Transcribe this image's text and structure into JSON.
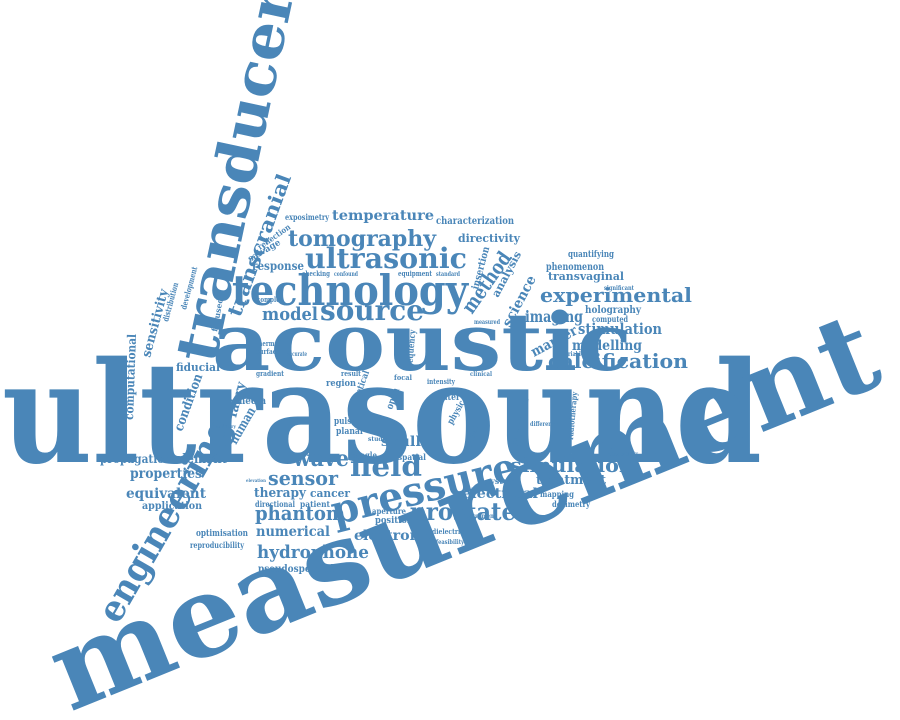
{
  "color": "#4a86b8",
  "words": [
    {
      "text": "ultrasound",
      "size": "xxl"
    },
    {
      "text": "measurement",
      "size": "xxl"
    },
    {
      "text": "acoustic",
      "size": "xl"
    },
    {
      "text": "transducer",
      "size": "xl"
    },
    {
      "text": "technology",
      "size": "l"
    },
    {
      "text": "engineering",
      "size": "l"
    },
    {
      "text": "pressure",
      "size": "l"
    },
    {
      "text": "ultrasonic",
      "size": "m"
    },
    {
      "text": "source",
      "size": "m"
    },
    {
      "text": "tomography",
      "size": "m"
    },
    {
      "text": "transcranial",
      "size": "m"
    },
    {
      "text": "field",
      "size": "m"
    },
    {
      "text": "wave",
      "size": "m"
    },
    {
      "text": "sensor",
      "size": "m"
    },
    {
      "text": "prostate",
      "size": "m"
    },
    {
      "text": "simulation",
      "size": "m"
    },
    {
      "text": "experimental",
      "size": "m"
    },
    {
      "text": "calcification",
      "size": "m"
    },
    {
      "text": "phantom",
      "size": "m"
    },
    {
      "text": "hydrophone",
      "size": "m"
    },
    {
      "text": "model",
      "size": "m"
    },
    {
      "text": "method",
      "size": "m"
    },
    {
      "text": "temperature",
      "size": "s"
    },
    {
      "text": "stimulation",
      "size": "s"
    },
    {
      "text": "imaging",
      "size": "s"
    },
    {
      "text": "science",
      "size": "s"
    },
    {
      "text": "modelling",
      "size": "s"
    },
    {
      "text": "marker",
      "size": "s"
    },
    {
      "text": "numerical",
      "size": "s"
    },
    {
      "text": "electronic",
      "size": "s"
    },
    {
      "text": "electrical",
      "size": "s"
    },
    {
      "text": "treatment",
      "size": "s"
    },
    {
      "text": "skull",
      "size": "s"
    },
    {
      "text": "therapy",
      "size": "s"
    },
    {
      "text": "properties",
      "size": "s"
    },
    {
      "text": "equivalent",
      "size": "s"
    },
    {
      "text": "application",
      "size": "xs"
    },
    {
      "text": "propagation",
      "size": "xs"
    },
    {
      "text": "element",
      "size": "s"
    },
    {
      "text": "sensitivity",
      "size": "s"
    },
    {
      "text": "computational",
      "size": "s"
    },
    {
      "text": "condition",
      "size": "s"
    },
    {
      "text": "human",
      "size": "s"
    },
    {
      "text": "fabry",
      "size": "s"
    },
    {
      "text": "fiducial",
      "size": "xs"
    },
    {
      "text": "directivity",
      "size": "xs"
    },
    {
      "text": "characterization",
      "size": "xs"
    },
    {
      "text": "transvaginal",
      "size": "xs"
    },
    {
      "text": "holography",
      "size": "xs"
    },
    {
      "text": "phenomenon",
      "size": "xs"
    },
    {
      "text": "quantifying",
      "size": "xs"
    },
    {
      "text": "response",
      "size": "xs"
    },
    {
      "text": "analysis",
      "size": "xs"
    },
    {
      "text": "insertion",
      "size": "xs"
    },
    {
      "text": "exposimetry",
      "size": "xs"
    },
    {
      "text": "reflection",
      "size": "xs"
    },
    {
      "text": "salvage",
      "size": "xs"
    },
    {
      "text": "optimisation",
      "size": "xs"
    },
    {
      "text": "reproducibility",
      "size": "xs"
    },
    {
      "text": "pseudospectral",
      "size": "xs"
    },
    {
      "text": "cancer",
      "size": "xs"
    },
    {
      "text": "mapping",
      "size": "xs"
    },
    {
      "text": "dosimetry",
      "size": "xs"
    },
    {
      "text": "position",
      "size": "xs"
    },
    {
      "text": "aperture",
      "size": "xs"
    },
    {
      "text": "system",
      "size": "xs"
    },
    {
      "text": "distortion",
      "size": "xs"
    },
    {
      "text": "spatial",
      "size": "xs"
    },
    {
      "text": "directional",
      "size": "xs"
    },
    {
      "text": "patient",
      "size": "xs"
    },
    {
      "text": "planar",
      "size": "xs"
    },
    {
      "text": "media",
      "size": "xs"
    },
    {
      "text": "region",
      "size": "xs"
    },
    {
      "text": "gradient",
      "size": "xs"
    },
    {
      "text": "intensity",
      "size": "xs"
    },
    {
      "text": "equipment",
      "size": "xs"
    },
    {
      "text": "checking",
      "size": "xs"
    },
    {
      "text": "complex",
      "size": "xs"
    },
    {
      "text": "focused",
      "size": "xs"
    },
    {
      "text": "computed",
      "size": "xs"
    },
    {
      "text": "variable",
      "size": "xs"
    },
    {
      "text": "thermal",
      "size": "xs"
    },
    {
      "text": "surface",
      "size": "xs"
    },
    {
      "text": "accurate",
      "size": "xs"
    },
    {
      "text": "distribution",
      "size": "xs"
    },
    {
      "text": "development",
      "size": "xs"
    },
    {
      "text": "radiotherapy",
      "size": "xs"
    },
    {
      "text": "difference",
      "size": "xs"
    },
    {
      "text": "water",
      "size": "xs"
    },
    {
      "text": "focal",
      "size": "xs"
    },
    {
      "text": "open",
      "size": "xs"
    },
    {
      "text": "optical",
      "size": "xs"
    },
    {
      "text": "frequency",
      "size": "xs"
    },
    {
      "text": "physic",
      "size": "xs"
    },
    {
      "text": "single",
      "size": "xs"
    },
    {
      "text": "pulse",
      "size": "xs"
    },
    {
      "text": "result",
      "size": "xs"
    },
    {
      "text": "study",
      "size": "xs"
    },
    {
      "text": "matlab",
      "size": "xs"
    },
    {
      "text": "dielectric",
      "size": "xs"
    },
    {
      "text": "feasibility",
      "size": "xs"
    },
    {
      "text": "agreement",
      "size": "xs"
    },
    {
      "text": "clinical",
      "size": "xs"
    },
    {
      "text": "measured",
      "size": "xs"
    },
    {
      "text": "confound",
      "size": "xs"
    },
    {
      "text": "standard",
      "size": "xs"
    },
    {
      "text": "significant",
      "size": "xs"
    },
    {
      "text": "repeatability",
      "size": "xs"
    },
    {
      "text": "elevation",
      "size": "xs"
    },
    {
      "text": "auditory",
      "size": "xs"
    }
  ]
}
